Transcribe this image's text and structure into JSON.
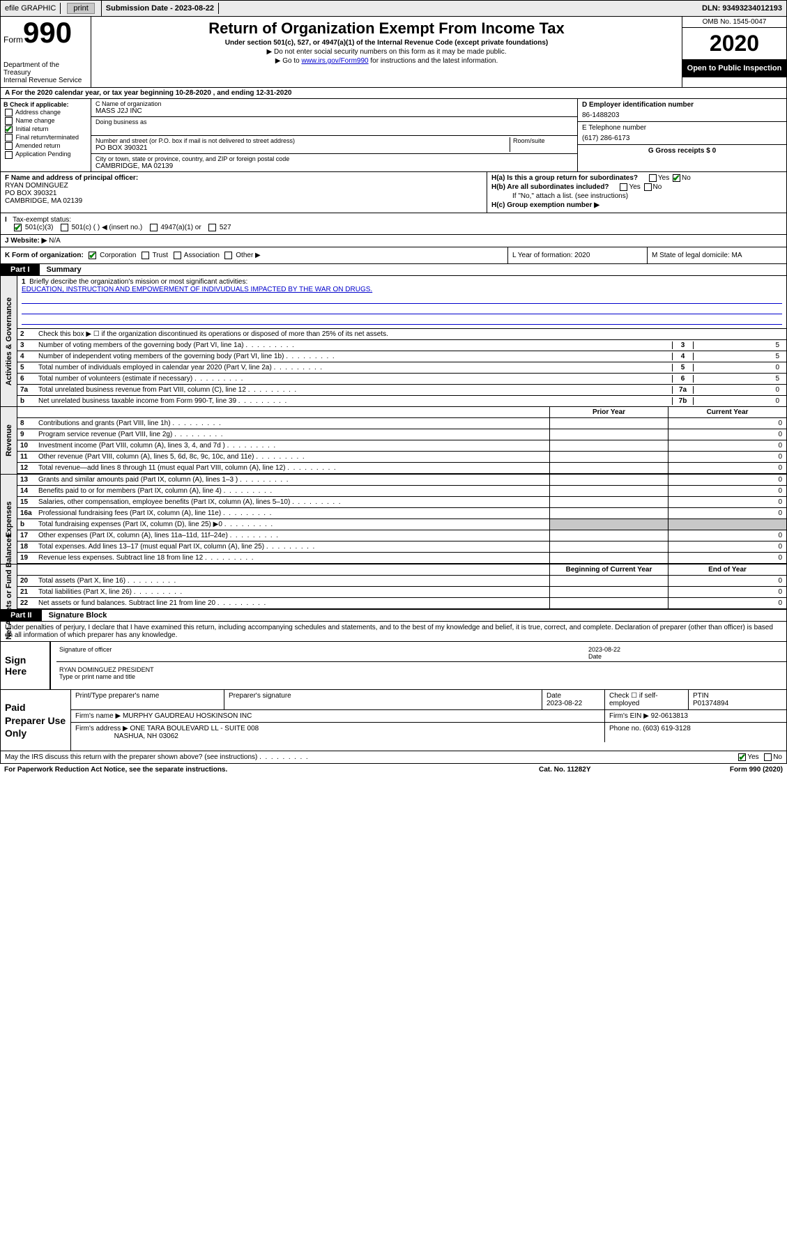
{
  "topbar": {
    "efile_label": "efile GRAPHIC",
    "print_btn": "print",
    "submission_label": "Submission Date - 2023-08-22",
    "dln": "DLN: 93493234012193"
  },
  "header": {
    "form_word": "Form",
    "form_num": "990",
    "dept": "Department of the Treasury\nInternal Revenue Service",
    "title": "Return of Organization Exempt From Income Tax",
    "sub": "Under section 501(c), 527, or 4947(a)(1) of the Internal Revenue Code (except private foundations)",
    "note1": "▶ Do not enter social security numbers on this form as it may be made public.",
    "note2_pre": "▶ Go to ",
    "note2_link": "www.irs.gov/Form990",
    "note2_post": " for instructions and the latest information.",
    "omb": "OMB No. 1545-0047",
    "year": "2020",
    "inspection": "Open to Public Inspection"
  },
  "row_a": "A For the 2020 calendar year, or tax year beginning 10-28-2020    , and ending 12-31-2020",
  "col_b": {
    "hdr": "B Check if applicable:",
    "items": [
      "Address change",
      "Name change",
      "Initial return",
      "Final return/terminated",
      "Amended return",
      "Application Pending"
    ],
    "checked_index": 2
  },
  "col_c": {
    "name_lbl": "C Name of organization",
    "name_val": "MASS J2J INC",
    "dba_lbl": "Doing business as",
    "addr_lbl": "Number and street (or P.O. box if mail is not delivered to street address)",
    "room_lbl": "Room/suite",
    "addr_val": "PO BOX 390321",
    "city_lbl": "City or town, state or province, country, and ZIP or foreign postal code",
    "city_val": "CAMBRIDGE, MA  02139"
  },
  "col_d": {
    "ein_lbl": "D Employer identification number",
    "ein_val": "86-1488203",
    "phone_lbl": "E Telephone number",
    "phone_val": "(617) 286-6173",
    "gross_lbl": "G Gross receipts $ 0"
  },
  "row_f": {
    "lbl": "F  Name and address of principal officer:",
    "name": "RYAN DOMINGUEZ",
    "addr": "PO BOX 390321",
    "city": "CAMBRIDGE, MA  02139"
  },
  "row_h": {
    "ha": "H(a)  Is this a group return for subordinates?",
    "hb": "H(b)  Are all subordinates included?",
    "hb_note": "If \"No,\" attach a list. (see instructions)",
    "hc": "H(c)  Group exemption number ▶"
  },
  "row_i": {
    "lbl": "Tax-exempt status:",
    "opts": [
      "501(c)(3)",
      "501(c) (  ) ◀ (insert no.)",
      "4947(a)(1) or",
      "527"
    ]
  },
  "row_j": {
    "lbl": "J   Website: ▶",
    "val": "  N/A"
  },
  "row_k": {
    "lbl": "K Form of organization:",
    "opts": [
      "Corporation",
      "Trust",
      "Association",
      "Other ▶"
    ]
  },
  "row_l": {
    "lbl": "L Year of formation: 2020"
  },
  "row_m": {
    "lbl": "M State of legal domicile: MA"
  },
  "parts": {
    "p1_tab": "Part I",
    "p1_title": "Summary",
    "p2_tab": "Part II",
    "p2_title": "Signature Block"
  },
  "vtabs": {
    "ag": "Activities & Governance",
    "rev": "Revenue",
    "exp": "Expenses",
    "nab": "Net Assets or Fund Balances"
  },
  "summary": {
    "q1_lbl": "Briefly describe the organization's mission or most significant activities:",
    "q1_val": "EDUCATION, INSTRUCTION AND EMPOWERMENT OF INDIVUDUALS IMPACTED BY THE WAR ON DRUGS.",
    "q2_lbl": "Check this box ▶ ☐  if the organization discontinued its operations or disposed of more than 25% of its net assets.",
    "lines_ag": [
      {
        "n": "3",
        "t": "Number of voting members of the governing body (Part VI, line 1a)",
        "bn": "3",
        "bv": "5"
      },
      {
        "n": "4",
        "t": "Number of independent voting members of the governing body (Part VI, line 1b)",
        "bn": "4",
        "bv": "5"
      },
      {
        "n": "5",
        "t": "Total number of individuals employed in calendar year 2020 (Part V, line 2a)",
        "bn": "5",
        "bv": "0"
      },
      {
        "n": "6",
        "t": "Total number of volunteers (estimate if necessary)",
        "bn": "6",
        "bv": "5"
      },
      {
        "n": "7a",
        "t": "Total unrelated business revenue from Part VIII, column (C), line 12",
        "bn": "7a",
        "bv": "0"
      },
      {
        "n": "b",
        "t": "Net unrelated business taxable income from Form 990-T, line 39",
        "bn": "7b",
        "bv": "0"
      }
    ],
    "hdr_prior": "Prior Year",
    "hdr_current": "Current Year",
    "lines_rev": [
      {
        "n": "8",
        "t": "Contributions and grants (Part VIII, line 1h)",
        "v1": "",
        "v2": "0"
      },
      {
        "n": "9",
        "t": "Program service revenue (Part VIII, line 2g)",
        "v1": "",
        "v2": "0"
      },
      {
        "n": "10",
        "t": "Investment income (Part VIII, column (A), lines 3, 4, and 7d )",
        "v1": "",
        "v2": "0"
      },
      {
        "n": "11",
        "t": "Other revenue (Part VIII, column (A), lines 5, 6d, 8c, 9c, 10c, and 11e)",
        "v1": "",
        "v2": "0"
      },
      {
        "n": "12",
        "t": "Total revenue—add lines 8 through 11 (must equal Part VIII, column (A), line 12)",
        "v1": "",
        "v2": "0"
      }
    ],
    "lines_exp": [
      {
        "n": "13",
        "t": "Grants and similar amounts paid (Part IX, column (A), lines 1–3 )",
        "v1": "",
        "v2": "0"
      },
      {
        "n": "14",
        "t": "Benefits paid to or for members (Part IX, column (A), line 4)",
        "v1": "",
        "v2": "0"
      },
      {
        "n": "15",
        "t": "Salaries, other compensation, employee benefits (Part IX, column (A), lines 5–10)",
        "v1": "",
        "v2": "0"
      },
      {
        "n": "16a",
        "t": "Professional fundraising fees (Part IX, column (A), line 11e)",
        "v1": "",
        "v2": "0"
      },
      {
        "n": "b",
        "t": "Total fundraising expenses (Part IX, column (D), line 25) ▶0",
        "v1": "shade",
        "v2": "shade"
      },
      {
        "n": "17",
        "t": "Other expenses (Part IX, column (A), lines 11a–11d, 11f–24e)",
        "v1": "",
        "v2": "0"
      },
      {
        "n": "18",
        "t": "Total expenses. Add lines 13–17 (must equal Part IX, column (A), line 25)",
        "v1": "",
        "v2": "0"
      },
      {
        "n": "19",
        "t": "Revenue less expenses. Subtract line 18 from line 12",
        "v1": "",
        "v2": "0"
      }
    ],
    "hdr_bcy": "Beginning of Current Year",
    "hdr_eoy": "End of Year",
    "lines_nab": [
      {
        "n": "20",
        "t": "Total assets (Part X, line 16)",
        "v1": "",
        "v2": "0"
      },
      {
        "n": "21",
        "t": "Total liabilities (Part X, line 26)",
        "v1": "",
        "v2": "0"
      },
      {
        "n": "22",
        "t": "Net assets or fund balances. Subtract line 21 from line 20",
        "v1": "",
        "v2": "0"
      }
    ]
  },
  "sig_text": "Under penalties of perjury, I declare that I have examined this return, including accompanying schedules and statements, and to the best of my knowledge and belief, it is true, correct, and complete. Declaration of preparer (other than officer) is based on all information of which preparer has any knowledge.",
  "sign": {
    "lab": "Sign Here",
    "sig_of_officer": "Signature of officer",
    "date_val": "2023-08-22",
    "date_lbl": "Date",
    "name": "RYAN DOMINGUEZ  PRESIDENT",
    "type_or_print": "Type or print name and title"
  },
  "prep": {
    "lab": "Paid Preparer Use Only",
    "h1": "Print/Type preparer's name",
    "h2": "Preparer's signature",
    "h3": "Date",
    "h3v": "2023-08-22",
    "h4": "Check ☐ if self-employed",
    "h5": "PTIN",
    "h5v": "P01374894",
    "firm_name_lbl": "Firm's name     ▶",
    "firm_name_val": "MURPHY GAUDREAU HOSKINSON INC",
    "firm_ein_lbl": "Firm's EIN ▶",
    "firm_ein_val": "92-0613813",
    "firm_addr_lbl": "Firm's address ▶",
    "firm_addr_val": "ONE TARA BOULEVARD LL - SUITE 008",
    "firm_addr_val2": "NASHUA, NH  03062",
    "phone_lbl": "Phone no.",
    "phone_val": "(603) 619-3128"
  },
  "discuss": {
    "q": "May the IRS discuss this return with the preparer shown above? (see instructions)",
    "yes": "Yes",
    "no": "No"
  },
  "bottom": {
    "b1": "For Paperwork Reduction Act Notice, see the separate instructions.",
    "b2": "Cat. No. 11282Y",
    "b3": "Form 990 (2020)"
  }
}
